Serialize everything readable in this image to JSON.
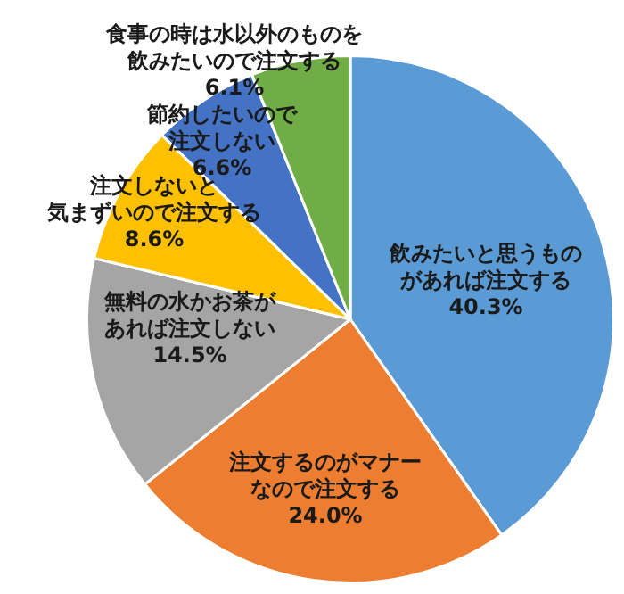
{
  "chart_data": {
    "type": "pie",
    "categories": [
      "飲みたいと思うものがあれば注文する",
      "注文するのがマナーなので注文する",
      "無料の水かお茶があれば注文しない",
      "注文しないと気まずいので注文する",
      "節約したいので注文しない",
      "食事の時は水以外のものを飲みたいので注文する"
    ],
    "values": [
      40.3,
      24.0,
      14.5,
      8.6,
      6.6,
      6.1
    ],
    "value_labels": [
      "40.3%",
      "24.0%",
      "14.5%",
      "8.6%",
      "6.6%",
      "6.1%"
    ],
    "colors": [
      "#5b9bd5",
      "#ed7d31",
      "#a5a5a5",
      "#ffc000",
      "#4472c4",
      "#70ad47"
    ]
  }
}
